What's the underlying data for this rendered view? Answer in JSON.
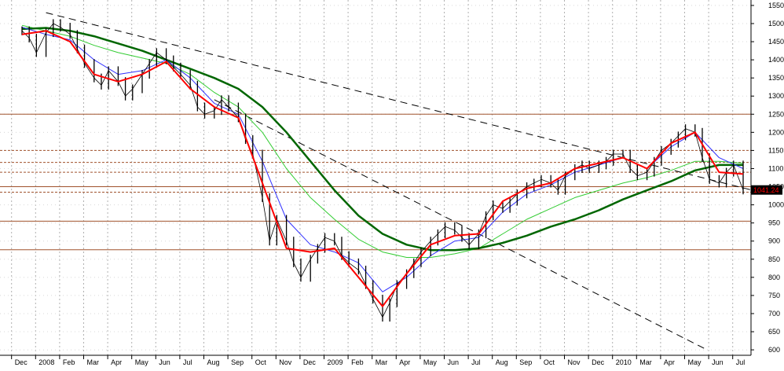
{
  "chart_data": {
    "type": "candlestick-line",
    "y_ticks": [
      600,
      650,
      700,
      750,
      800,
      850,
      900,
      950,
      1000,
      1050,
      1100,
      1150,
      1200,
      1250,
      1300,
      1350,
      1400,
      1450,
      1500,
      1550
    ],
    "ylim": [
      585,
      1565
    ],
    "x_labels": [
      "Dec",
      "2008",
      "Feb",
      "Mar",
      "Apr",
      "May",
      "Jun",
      "Jul",
      "Aug",
      "Sep",
      "Oct",
      "Nov",
      "Dec",
      "2009",
      "Feb",
      "Mar",
      "Apr",
      "May",
      "Jun",
      "Jul",
      "Aug",
      "Sep",
      "Oct",
      "Nov",
      "Dec",
      "2010",
      "Mar",
      "Apr",
      "May",
      "Jun",
      "Jul"
    ],
    "last_value_label": "1041.24",
    "price_series": [
      [
        0,
        1480
      ],
      [
        0.3,
        1460
      ],
      [
        0.6,
        1420
      ],
      [
        1,
        1475
      ],
      [
        1.3,
        1500
      ],
      [
        1.6,
        1490
      ],
      [
        2,
        1470
      ],
      [
        2.3,
        1430
      ],
      [
        2.6,
        1390
      ],
      [
        3,
        1350
      ],
      [
        3.3,
        1330
      ],
      [
        3.6,
        1370
      ],
      [
        4,
        1340
      ],
      [
        4.3,
        1300
      ],
      [
        4.6,
        1320
      ],
      [
        5,
        1360
      ],
      [
        5.3,
        1390
      ],
      [
        5.6,
        1420
      ],
      [
        6,
        1400
      ],
      [
        6.3,
        1380
      ],
      [
        6.6,
        1360
      ],
      [
        7,
        1330
      ],
      [
        7.3,
        1270
      ],
      [
        7.6,
        1250
      ],
      [
        8,
        1260
      ],
      [
        8.3,
        1290
      ],
      [
        8.6,
        1270
      ],
      [
        9,
        1240
      ],
      [
        9.3,
        1180
      ],
      [
        9.6,
        1140
      ],
      [
        10,
        1020
      ],
      [
        10.3,
        900
      ],
      [
        10.6,
        960
      ],
      [
        11,
        900
      ],
      [
        11.3,
        840
      ],
      [
        11.6,
        800
      ],
      [
        12,
        850
      ],
      [
        12.3,
        880
      ],
      [
        12.6,
        910
      ],
      [
        13,
        900
      ],
      [
        13.3,
        860
      ],
      [
        13.6,
        840
      ],
      [
        14,
        820
      ],
      [
        14.3,
        780
      ],
      [
        14.6,
        740
      ],
      [
        15,
        690
      ],
      [
        15.3,
        730
      ],
      [
        15.6,
        780
      ],
      [
        16,
        810
      ],
      [
        16.3,
        840
      ],
      [
        16.6,
        870
      ],
      [
        17,
        900
      ],
      [
        17.3,
        920
      ],
      [
        17.6,
        940
      ],
      [
        18,
        930
      ],
      [
        18.3,
        910
      ],
      [
        18.6,
        890
      ],
      [
        19,
        920
      ],
      [
        19.3,
        970
      ],
      [
        19.6,
        1000
      ],
      [
        20,
        990
      ],
      [
        20.3,
        1010
      ],
      [
        20.6,
        1030
      ],
      [
        21,
        1050
      ],
      [
        21.3,
        1060
      ],
      [
        21.6,
        1070
      ],
      [
        22,
        1060
      ],
      [
        22.3,
        1040
      ],
      [
        22.6,
        1080
      ],
      [
        23,
        1100
      ],
      [
        23.3,
        1110
      ],
      [
        23.6,
        1100
      ],
      [
        24,
        1110
      ],
      [
        24.3,
        1120
      ],
      [
        24.6,
        1140
      ],
      [
        25,
        1140
      ],
      [
        25.3,
        1100
      ],
      [
        25.6,
        1080
      ],
      [
        26,
        1090
      ],
      [
        26.3,
        1120
      ],
      [
        26.6,
        1150
      ],
      [
        27,
        1170
      ],
      [
        27.3,
        1190
      ],
      [
        27.6,
        1210
      ],
      [
        28,
        1200
      ],
      [
        28.3,
        1130
      ],
      [
        28.6,
        1070
      ],
      [
        29,
        1060
      ],
      [
        29.3,
        1090
      ],
      [
        29.6,
        1110
      ],
      [
        30,
        1041
      ]
    ],
    "ma_red": [
      [
        0,
        1470
      ],
      [
        1,
        1480
      ],
      [
        2,
        1450
      ],
      [
        3,
        1360
      ],
      [
        4,
        1340
      ],
      [
        5,
        1360
      ],
      [
        6,
        1395
      ],
      [
        7,
        1320
      ],
      [
        8,
        1270
      ],
      [
        9,
        1240
      ],
      [
        10,
        1060
      ],
      [
        11,
        880
      ],
      [
        12,
        870
      ],
      [
        13,
        880
      ],
      [
        14,
        800
      ],
      [
        15,
        720
      ],
      [
        16,
        810
      ],
      [
        17,
        890
      ],
      [
        18,
        915
      ],
      [
        19,
        920
      ],
      [
        20,
        1010
      ],
      [
        21,
        1045
      ],
      [
        22,
        1060
      ],
      [
        23,
        1100
      ],
      [
        24,
        1115
      ],
      [
        25,
        1130
      ],
      [
        26,
        1100
      ],
      [
        27,
        1170
      ],
      [
        28,
        1200
      ],
      [
        29,
        1090
      ],
      [
        30,
        1085
      ]
    ],
    "ma_blue": [
      [
        0,
        1490
      ],
      [
        1,
        1470
      ],
      [
        2,
        1455
      ],
      [
        3,
        1400
      ],
      [
        4,
        1360
      ],
      [
        5,
        1370
      ],
      [
        6,
        1400
      ],
      [
        7,
        1350
      ],
      [
        8,
        1280
      ],
      [
        9,
        1250
      ],
      [
        10,
        1120
      ],
      [
        11,
        960
      ],
      [
        12,
        890
      ],
      [
        13,
        870
      ],
      [
        14,
        840
      ],
      [
        15,
        760
      ],
      [
        16,
        800
      ],
      [
        17,
        860
      ],
      [
        18,
        900
      ],
      [
        19,
        910
      ],
      [
        20,
        980
      ],
      [
        21,
        1030
      ],
      [
        22,
        1055
      ],
      [
        23,
        1090
      ],
      [
        24,
        1110
      ],
      [
        25,
        1130
      ],
      [
        26,
        1100
      ],
      [
        27,
        1160
      ],
      [
        28,
        1200
      ],
      [
        29,
        1130
      ],
      [
        30,
        1100
      ]
    ],
    "ma_light_green": [
      [
        0,
        1495
      ],
      [
        1,
        1480
      ],
      [
        2,
        1465
      ],
      [
        3,
        1440
      ],
      [
        4,
        1420
      ],
      [
        5,
        1405
      ],
      [
        6,
        1390
      ],
      [
        7,
        1360
      ],
      [
        8,
        1310
      ],
      [
        9,
        1270
      ],
      [
        10,
        1200
      ],
      [
        11,
        1100
      ],
      [
        12,
        1020
      ],
      [
        13,
        960
      ],
      [
        14,
        905
      ],
      [
        15,
        870
      ],
      [
        16,
        855
      ],
      [
        17,
        855
      ],
      [
        18,
        865
      ],
      [
        19,
        880
      ],
      [
        20,
        920
      ],
      [
        21,
        960
      ],
      [
        22,
        990
      ],
      [
        23,
        1020
      ],
      [
        24,
        1040
      ],
      [
        25,
        1060
      ],
      [
        26,
        1075
      ],
      [
        27,
        1095
      ],
      [
        28,
        1120
      ],
      [
        29,
        1120
      ],
      [
        30,
        1115
      ]
    ],
    "ma_dark_green": [
      [
        0,
        1485
      ],
      [
        1,
        1488
      ],
      [
        2,
        1480
      ],
      [
        3,
        1465
      ],
      [
        4,
        1445
      ],
      [
        5,
        1425
      ],
      [
        6,
        1400
      ],
      [
        7,
        1375
      ],
      [
        8,
        1350
      ],
      [
        9,
        1320
      ],
      [
        10,
        1270
      ],
      [
        11,
        1200
      ],
      [
        12,
        1120
      ],
      [
        13,
        1040
      ],
      [
        14,
        970
      ],
      [
        15,
        920
      ],
      [
        16,
        890
      ],
      [
        17,
        875
      ],
      [
        18,
        875
      ],
      [
        19,
        880
      ],
      [
        20,
        895
      ],
      [
        21,
        915
      ],
      [
        22,
        940
      ],
      [
        23,
        960
      ],
      [
        24,
        985
      ],
      [
        25,
        1015
      ],
      [
        26,
        1040
      ],
      [
        27,
        1065
      ],
      [
        28,
        1095
      ],
      [
        29,
        1110
      ],
      [
        30,
        1110
      ]
    ],
    "horizontal_levels": [
      {
        "value": 1250,
        "style": "solid"
      },
      {
        "value": 1150,
        "style": "dashed"
      },
      {
        "value": 1117,
        "style": "dashed"
      },
      {
        "value": 1090,
        "style": "dashed"
      },
      {
        "value": 1050,
        "style": "solid"
      },
      {
        "value": 1035,
        "style": "dashed"
      },
      {
        "value": 955,
        "style": "solid"
      },
      {
        "value": 876,
        "style": "solid"
      }
    ],
    "trendlines": [
      {
        "from": [
          1,
          1530
        ],
        "to": [
          31,
          1030
        ]
      },
      {
        "from": [
          8,
          1290
        ],
        "to": [
          28.5,
          600
        ]
      }
    ],
    "colors": {
      "price": "#000000",
      "ma_red": "#ff0000",
      "ma_blue": "#3030ff",
      "ma_light_green": "#33cc33",
      "ma_dark_green": "#006600",
      "level": "#a0522d",
      "grid": "#b0b0b0",
      "price_tag_bg": "#000000",
      "price_tag_text": "#ff0000"
    }
  }
}
